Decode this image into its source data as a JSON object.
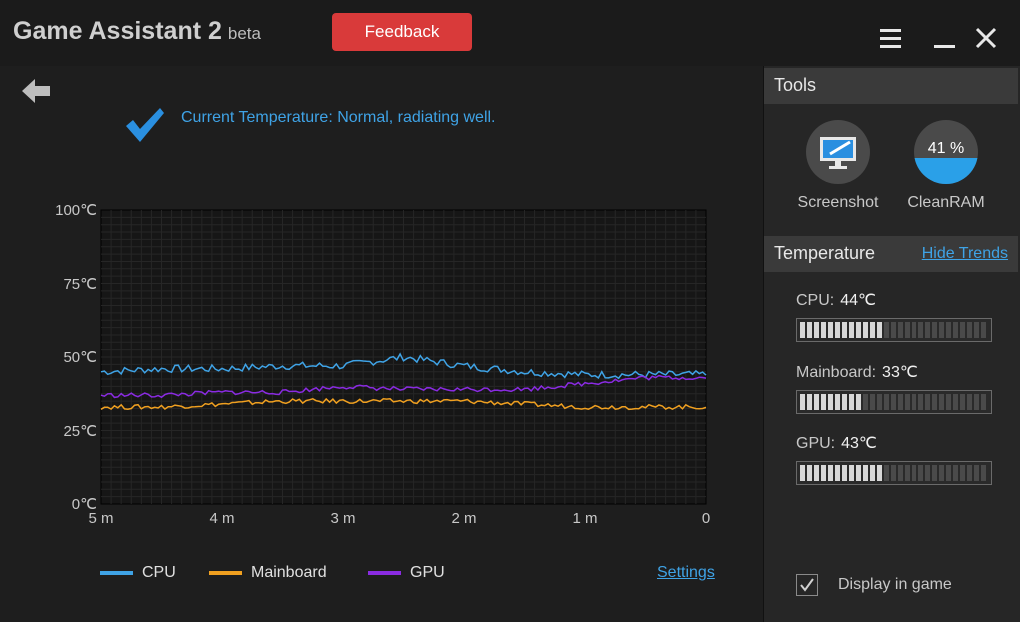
{
  "app": {
    "title": "Game Assistant 2",
    "beta": "beta"
  },
  "toolbar": {
    "feedback_label": "Feedback"
  },
  "status": {
    "text": "Current Temperature: Normal, radiating well."
  },
  "chart_data": {
    "type": "line",
    "title": "",
    "xlabel": "",
    "ylabel": "",
    "x_ticks": [
      "5 m",
      "4 m",
      "3 m",
      "2 m",
      "1 m",
      "0"
    ],
    "y_ticks": [
      "100℃",
      "75℃",
      "50℃",
      "25℃",
      "0℃"
    ],
    "ylim": [
      0,
      100
    ],
    "x": [
      -5,
      -4.5,
      -4,
      -3.5,
      -3,
      -2.5,
      -2,
      -1.5,
      -1,
      -0.5,
      0
    ],
    "series": [
      {
        "name": "CPU",
        "color": "#3fa3e6",
        "values": [
          45,
          46,
          46,
          47,
          47,
          50,
          47,
          45,
          44,
          44,
          44
        ]
      },
      {
        "name": "Mainboard",
        "color": "#f0a020",
        "values": [
          33,
          33,
          34,
          35,
          35,
          35,
          35,
          34,
          33,
          33,
          33
        ]
      },
      {
        "name": "GPU",
        "color": "#8a2be2",
        "values": [
          37,
          37,
          38,
          38,
          40,
          39,
          39,
          39,
          41,
          43,
          43
        ]
      }
    ],
    "grid": true,
    "legend": "bottom"
  },
  "legend": {
    "cpu": "CPU",
    "mainboard": "Mainboard",
    "gpu": "GPU",
    "settings_label": "Settings"
  },
  "tools": {
    "header": "Tools",
    "screenshot_label": "Screenshot",
    "cleanram_label": "CleanRAM",
    "ram_percent_text": "41 %",
    "ram_percent": 41
  },
  "temperature": {
    "header": "Temperature",
    "hide_trends_label": "Hide Trends",
    "cpu_label": "CPU:",
    "cpu_value": "44℃",
    "cpu_level": 0.44,
    "mainboard_label": "Mainboard:",
    "mainboard_value": "33℃",
    "mainboard_level": 0.33,
    "gpu_label": "GPU:",
    "gpu_value": "43℃",
    "gpu_level": 0.43
  },
  "footer": {
    "display_in_game_label": "Display in game",
    "display_in_game_checked": true
  }
}
